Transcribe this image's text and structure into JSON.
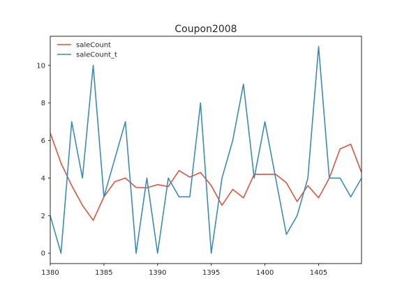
{
  "chart_data": {
    "type": "line",
    "title": "Coupon2008",
    "xlabel": "",
    "ylabel": "",
    "xlim": [
      1380,
      1409
    ],
    "ylim": [
      -0.55,
      11.55
    ],
    "x": [
      1380,
      1381,
      1382,
      1383,
      1384,
      1385,
      1386,
      1387,
      1388,
      1389,
      1390,
      1391,
      1392,
      1393,
      1394,
      1395,
      1396,
      1397,
      1398,
      1399,
      1400,
      1401,
      1402,
      1403,
      1404,
      1405,
      1406,
      1407,
      1408,
      1409
    ],
    "xticks": [
      "1380",
      "1385",
      "1390",
      "1395",
      "1400",
      "1405"
    ],
    "yticks": [
      "0",
      "2",
      "4",
      "6",
      "8",
      "10"
    ],
    "grid": false,
    "legend_position": "upper-left",
    "series": [
      {
        "name": "saleCount",
        "color": "#d9553f",
        "values": [
          6.4,
          4.8,
          3.6,
          2.55,
          1.75,
          3.0,
          3.8,
          4.0,
          3.5,
          3.48,
          3.65,
          3.55,
          4.4,
          4.05,
          4.3,
          3.6,
          2.55,
          3.4,
          2.95,
          4.2,
          4.2,
          4.2,
          3.75,
          2.75,
          3.6,
          2.95,
          4.0,
          5.55,
          5.8,
          4.3
        ]
      },
      {
        "name": "saleCount_t",
        "color": "#3a8bb5",
        "values": [
          2,
          0,
          7,
          4,
          10,
          3,
          5,
          7,
          0,
          4,
          0,
          4,
          3,
          3,
          8,
          0,
          4,
          6,
          9,
          4,
          7,
          4,
          1,
          2,
          4,
          11,
          4,
          4,
          3,
          4
        ]
      }
    ]
  }
}
